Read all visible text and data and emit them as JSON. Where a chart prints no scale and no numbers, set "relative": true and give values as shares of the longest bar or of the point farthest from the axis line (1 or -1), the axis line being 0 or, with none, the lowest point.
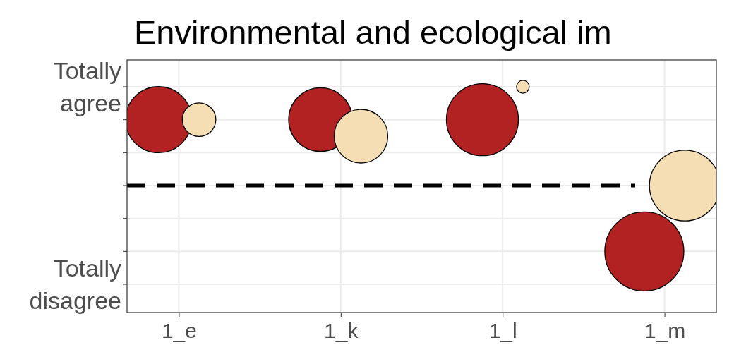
{
  "chart_data": {
    "type": "bubble",
    "title": "Environmental and ecological im",
    "categories": [
      "1_e",
      "1_k",
      "1_l",
      "1_m"
    ],
    "series": [
      {
        "color": "#b22222",
        "values": [
          0.667,
          0.667,
          0.667,
          -0.667
        ],
        "sizes": [
          0.7,
          0.65,
          0.83,
          1
        ]
      },
      {
        "color": "#f5deb3",
        "values": [
          0.667,
          0.5,
          1,
          0
        ],
        "sizes": [
          0.18,
          0.46,
          0.026,
          0.8
        ]
      }
    ],
    "relative": true,
    "annotations": [
      "Totally\nagree",
      "Totally\ndisagree"
    ],
    "ref_lines": [
      {
        "axis": "y",
        "value": 0,
        "color": "#000000",
        "line_style": "dashed"
      }
    ],
    "grid": true
  }
}
